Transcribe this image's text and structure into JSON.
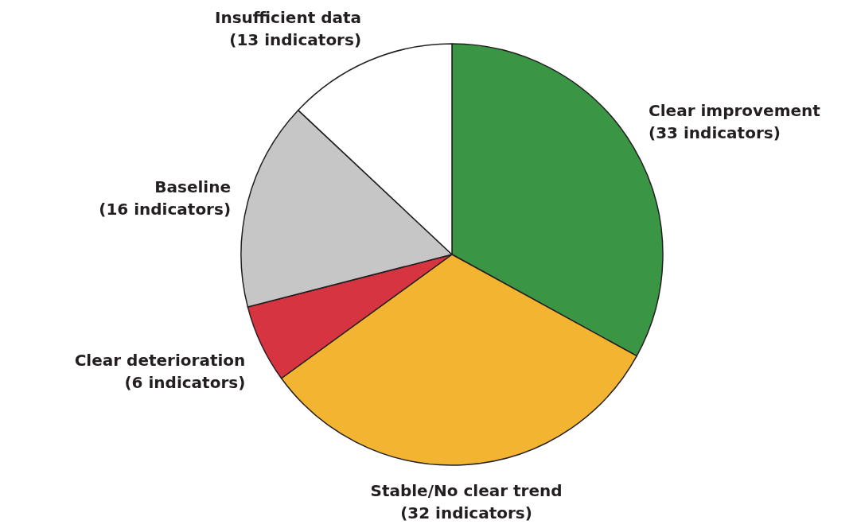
{
  "chart_data": {
    "type": "pie",
    "categories": [
      "Clear improvement",
      "Stable/No clear trend",
      "Clear deterioration",
      "Baseline",
      "Insufficient data"
    ],
    "values": [
      33,
      32,
      6,
      16,
      13
    ],
    "value_labels": [
      "(33 indicators)",
      "(32 indicators)",
      "(6 indicators)",
      "(16 indicators)",
      "(13 indicators)"
    ],
    "colors": [
      "#3a9645",
      "#f2b431",
      "#d63441",
      "#c6c6c6",
      "#ffffff"
    ]
  }
}
